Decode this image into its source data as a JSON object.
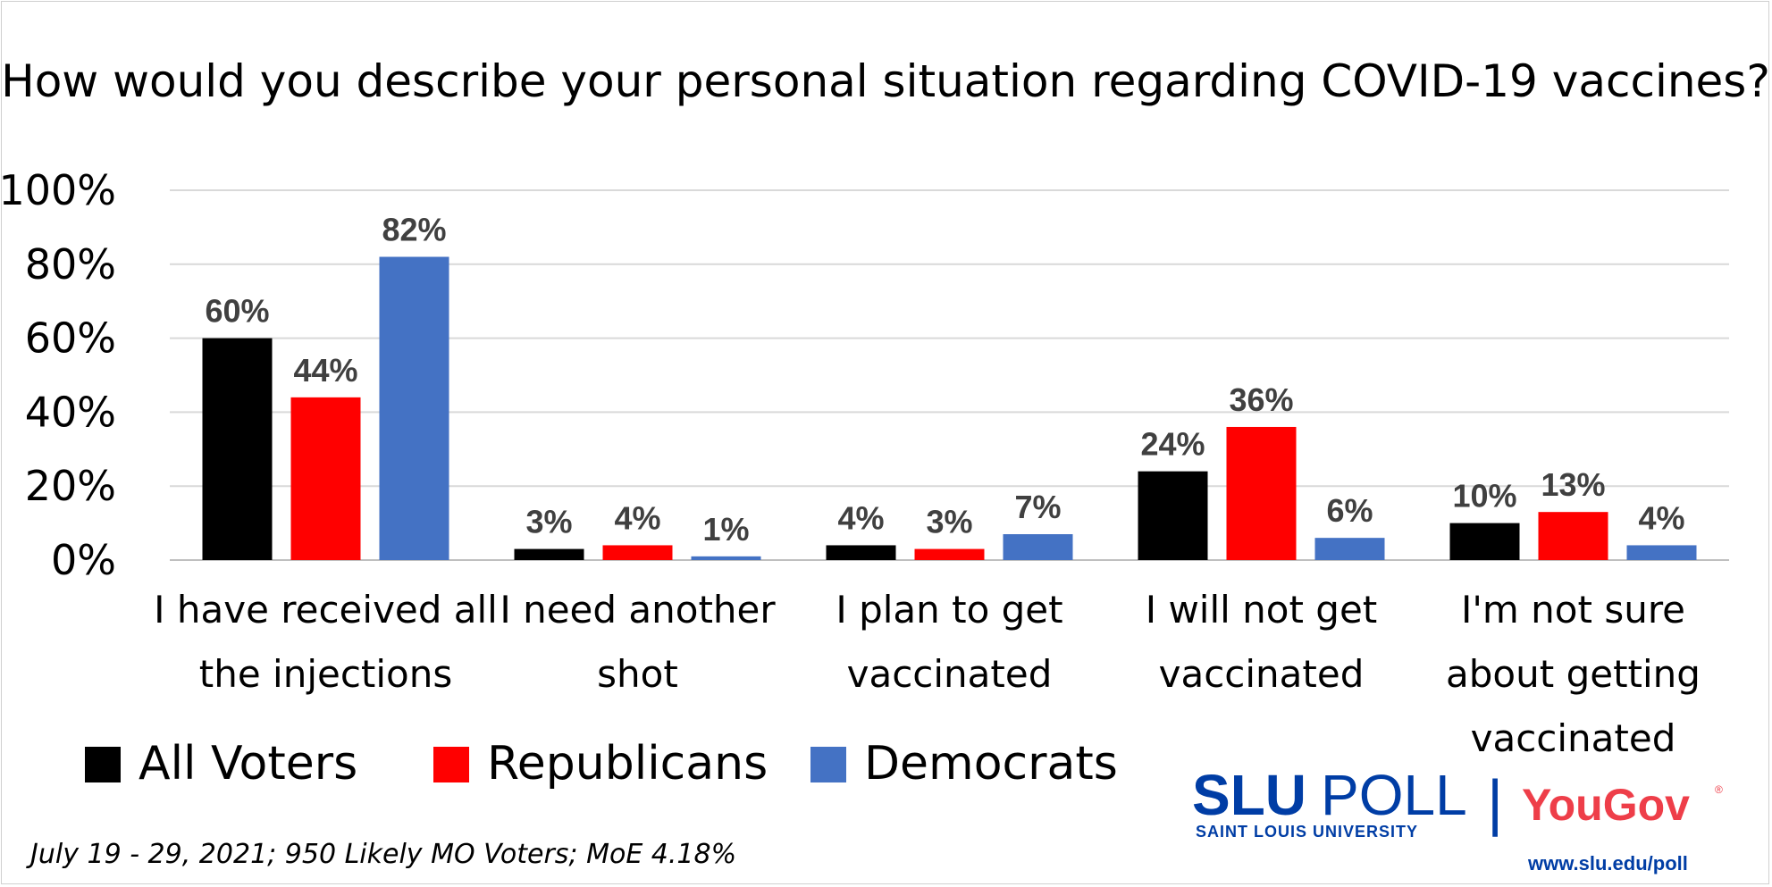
{
  "chart_data": {
    "type": "bar",
    "title": "How would you describe your personal situation regarding COVID-19 vaccines?",
    "categories": [
      [
        "I have received all",
        "the injections"
      ],
      [
        "I need another",
        "shot"
      ],
      [
        "I plan to get",
        "vaccinated"
      ],
      [
        "I will not get",
        "vaccinated"
      ],
      [
        "I'm not sure",
        "about getting",
        "vaccinated"
      ]
    ],
    "series": [
      {
        "name": "All Voters",
        "color": "#000000",
        "values": [
          60,
          3,
          4,
          24,
          10
        ]
      },
      {
        "name": "Republicans",
        "color": "#ff0000",
        "values": [
          44,
          4,
          3,
          36,
          13
        ]
      },
      {
        "name": "Democrats",
        "color": "#4472c4",
        "values": [
          82,
          1,
          7,
          6,
          4
        ]
      }
    ],
    "ylim": [
      0,
      100
    ],
    "yticks": [
      0,
      20,
      40,
      60,
      80,
      100
    ],
    "tick_suffix": "%",
    "label_suffix": "%",
    "grid": true,
    "legend": "bottom-left"
  },
  "footnote": "July 19 - 29, 2021; 950 Likely MO Voters; MoE 4.18%",
  "logos": {
    "slu_main": "SLU",
    "slu_poll": "POLL",
    "slu_sub": "SAINT LOUIS UNIVERSITY",
    "divider": "|",
    "yougov": "YouGov",
    "url": "www.slu.edu/poll"
  },
  "colors": {
    "grid": "#d9d9d9",
    "data_label": "#404040",
    "slu_blue": "#003da5",
    "yougov_red": "#ee3e49"
  }
}
